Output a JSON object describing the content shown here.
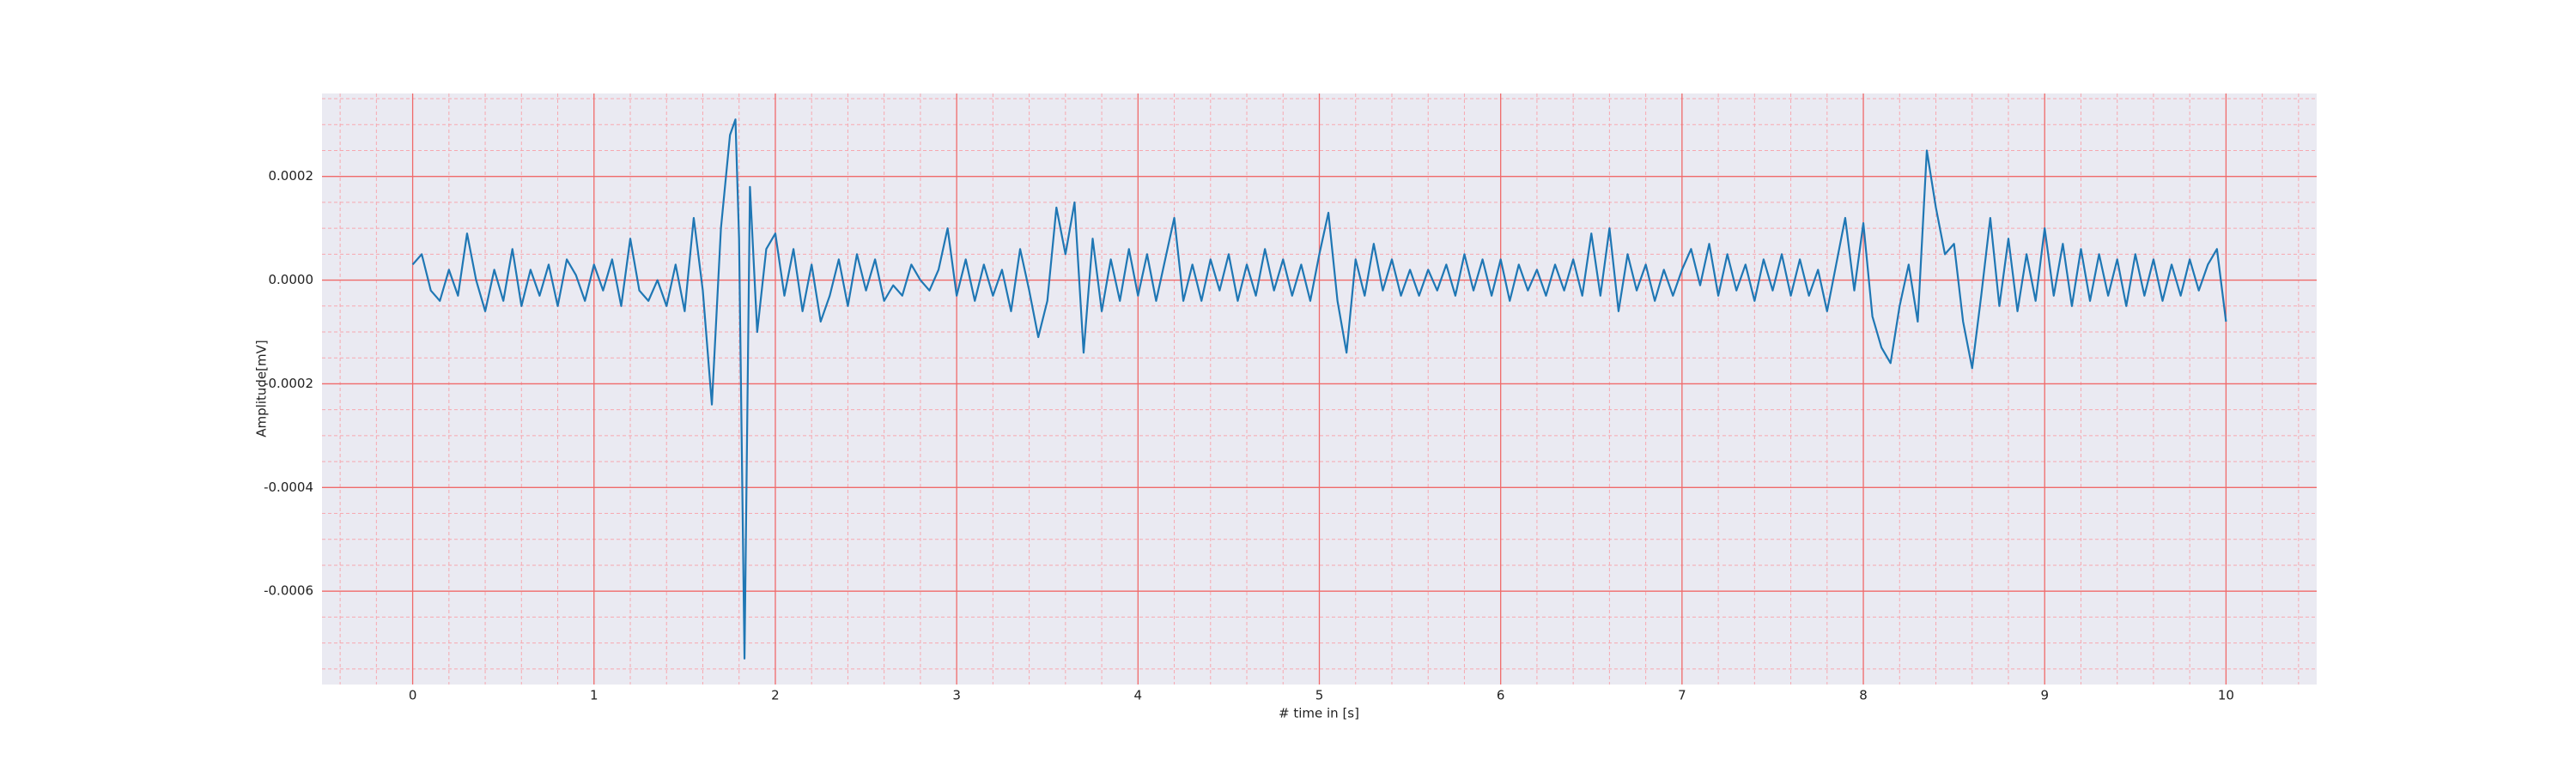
{
  "chart_data": {
    "type": "line",
    "xlabel": "# time in [s]",
    "ylabel": "Amplitude[mV]",
    "color": "#1f77b4",
    "grid": true,
    "minor_grid": true,
    "xlim": [
      -0.5,
      10.5
    ],
    "ylim": [
      -0.00078,
      0.00036
    ],
    "xticks": [
      0,
      1,
      2,
      3,
      4,
      5,
      6,
      7,
      8,
      9,
      10
    ],
    "yticks": [
      -0.0006,
      -0.0004,
      -0.0002,
      {
        "value": 0,
        "label": "0.0000"
      },
      0.0002
    ],
    "xminorticks": [
      -0.4,
      -0.2,
      0.2,
      0.4,
      0.6,
      0.8,
      1.2,
      1.4,
      1.6,
      1.8,
      2.2,
      2.4,
      2.6,
      2.8,
      3.2,
      3.4,
      3.6,
      3.8,
      4.2,
      4.4,
      4.6,
      4.8,
      5.2,
      5.4,
      5.6,
      5.8,
      6.2,
      6.4,
      6.6,
      6.8,
      7.2,
      7.4,
      7.6,
      7.8,
      8.2,
      8.4,
      8.6,
      8.8,
      9.2,
      9.4,
      9.6,
      9.8,
      10.2,
      10.4
    ],
    "yminorticks": [
      -0.00075,
      -0.0007,
      -0.00065,
      -0.00055,
      -0.0005,
      -0.00045,
      -0.00035,
      -0.0003,
      -0.00025,
      -0.00015,
      -0.0001,
      -5e-05,
      5e-05,
      0.0001,
      0.00015,
      0.00025,
      0.0003,
      0.00035
    ],
    "x": [
      0,
      0.05,
      0.1,
      0.15,
      0.2,
      0.25,
      0.3,
      0.35,
      0.4,
      0.45,
      0.5,
      0.55,
      0.6,
      0.65,
      0.7,
      0.75,
      0.8,
      0.85,
      0.9,
      0.95,
      1.0,
      1.05,
      1.1,
      1.15,
      1.2,
      1.25,
      1.3,
      1.35,
      1.4,
      1.45,
      1.5,
      1.55,
      1.6,
      1.65,
      1.7,
      1.75,
      1.78,
      1.8,
      1.83,
      1.86,
      1.9,
      1.95,
      2.0,
      2.05,
      2.1,
      2.15,
      2.2,
      2.25,
      2.3,
      2.35,
      2.4,
      2.45,
      2.5,
      2.55,
      2.6,
      2.65,
      2.7,
      2.75,
      2.8,
      2.85,
      2.9,
      2.95,
      3.0,
      3.05,
      3.1,
      3.15,
      3.2,
      3.25,
      3.3,
      3.35,
      3.4,
      3.45,
      3.5,
      3.55,
      3.6,
      3.65,
      3.7,
      3.75,
      3.8,
      3.85,
      3.9,
      3.95,
      4.0,
      4.05,
      4.1,
      4.15,
      4.2,
      4.25,
      4.3,
      4.35,
      4.4,
      4.45,
      4.5,
      4.55,
      4.6,
      4.65,
      4.7,
      4.75,
      4.8,
      4.85,
      4.9,
      4.95,
      5.0,
      5.05,
      5.1,
      5.15,
      5.2,
      5.25,
      5.3,
      5.35,
      5.4,
      5.45,
      5.5,
      5.55,
      5.6,
      5.65,
      5.7,
      5.75,
      5.8,
      5.85,
      5.9,
      5.95,
      6.0,
      6.05,
      6.1,
      6.15,
      6.2,
      6.25,
      6.3,
      6.35,
      6.4,
      6.45,
      6.5,
      6.55,
      6.6,
      6.65,
      6.7,
      6.75,
      6.8,
      6.85,
      6.9,
      6.95,
      7.0,
      7.05,
      7.1,
      7.15,
      7.2,
      7.25,
      7.3,
      7.35,
      7.4,
      7.45,
      7.5,
      7.55,
      7.6,
      7.65,
      7.7,
      7.75,
      7.8,
      7.85,
      7.9,
      7.95,
      8.0,
      8.05,
      8.1,
      8.15,
      8.2,
      8.25,
      8.3,
      8.35,
      8.4,
      8.45,
      8.5,
      8.55,
      8.6,
      8.65,
      8.7,
      8.75,
      8.8,
      8.85,
      8.9,
      8.95,
      9.0,
      9.05,
      9.1,
      9.15,
      9.2,
      9.25,
      9.3,
      9.35,
      9.4,
      9.45,
      9.5,
      9.55,
      9.6,
      9.65,
      9.7,
      9.75,
      9.8,
      9.85,
      9.9,
      9.95,
      10.0
    ],
    "values": [
      3e-05,
      5e-05,
      -2e-05,
      -4e-05,
      2e-05,
      -3e-05,
      9e-05,
      0,
      -6e-05,
      2e-05,
      -4e-05,
      6e-05,
      -5e-05,
      2e-05,
      -3e-05,
      3e-05,
      -5e-05,
      4e-05,
      1e-05,
      -4e-05,
      3e-05,
      -2e-05,
      4e-05,
      -5e-05,
      8e-05,
      -2e-05,
      -4e-05,
      0,
      -5e-05,
      3e-05,
      -6e-05,
      0.00012,
      -2e-05,
      -0.00024,
      0.0001,
      0.00028,
      0.00031,
      8e-05,
      -0.00073,
      0.00018,
      -0.0001,
      6e-05,
      9e-05,
      -3e-05,
      6e-05,
      -6e-05,
      3e-05,
      -8e-05,
      -3e-05,
      4e-05,
      -5e-05,
      5e-05,
      -2e-05,
      4e-05,
      -4e-05,
      -1e-05,
      -3e-05,
      3e-05,
      0,
      -2e-05,
      2e-05,
      0.0001,
      -3e-05,
      4e-05,
      -4e-05,
      3e-05,
      -3e-05,
      2e-05,
      -6e-05,
      6e-05,
      -2e-05,
      -0.00011,
      -4e-05,
      0.00014,
      5e-05,
      0.00015,
      -0.00014,
      8e-05,
      -6e-05,
      4e-05,
      -4e-05,
      6e-05,
      -3e-05,
      5e-05,
      -4e-05,
      4e-05,
      0.00012,
      -4e-05,
      3e-05,
      -4e-05,
      4e-05,
      -2e-05,
      5e-05,
      -4e-05,
      3e-05,
      -3e-05,
      6e-05,
      -2e-05,
      4e-05,
      -3e-05,
      3e-05,
      -4e-05,
      5e-05,
      0.00013,
      -4e-05,
      -0.00014,
      4e-05,
      -3e-05,
      7e-05,
      -2e-05,
      4e-05,
      -3e-05,
      2e-05,
      -3e-05,
      2e-05,
      -2e-05,
      3e-05,
      -3e-05,
      5e-05,
      -2e-05,
      4e-05,
      -3e-05,
      4e-05,
      -4e-05,
      3e-05,
      -2e-05,
      2e-05,
      -3e-05,
      3e-05,
      -2e-05,
      4e-05,
      -3e-05,
      9e-05,
      -3e-05,
      0.0001,
      -6e-05,
      5e-05,
      -2e-05,
      3e-05,
      -4e-05,
      2e-05,
      -3e-05,
      2e-05,
      6e-05,
      -1e-05,
      7e-05,
      -3e-05,
      5e-05,
      -2e-05,
      3e-05,
      -4e-05,
      4e-05,
      -2e-05,
      5e-05,
      -3e-05,
      4e-05,
      -3e-05,
      2e-05,
      -6e-05,
      3e-05,
      0.00012,
      -2e-05,
      0.00011,
      -7e-05,
      -0.00013,
      -0.00016,
      -5e-05,
      3e-05,
      -8e-05,
      0.00025,
      0.00014,
      5e-05,
      7e-05,
      -8e-05,
      -0.00017,
      -3e-05,
      0.00012,
      -5e-05,
      8e-05,
      -6e-05,
      5e-05,
      -4e-05,
      0.0001,
      -3e-05,
      7e-05,
      -5e-05,
      6e-05,
      -4e-05,
      5e-05,
      -3e-05,
      4e-05,
      -5e-05,
      5e-05,
      -3e-05,
      4e-05,
      -4e-05,
      3e-05,
      -3e-05,
      4e-05,
      -2e-05,
      3e-05,
      6e-05,
      -8e-05
    ]
  }
}
